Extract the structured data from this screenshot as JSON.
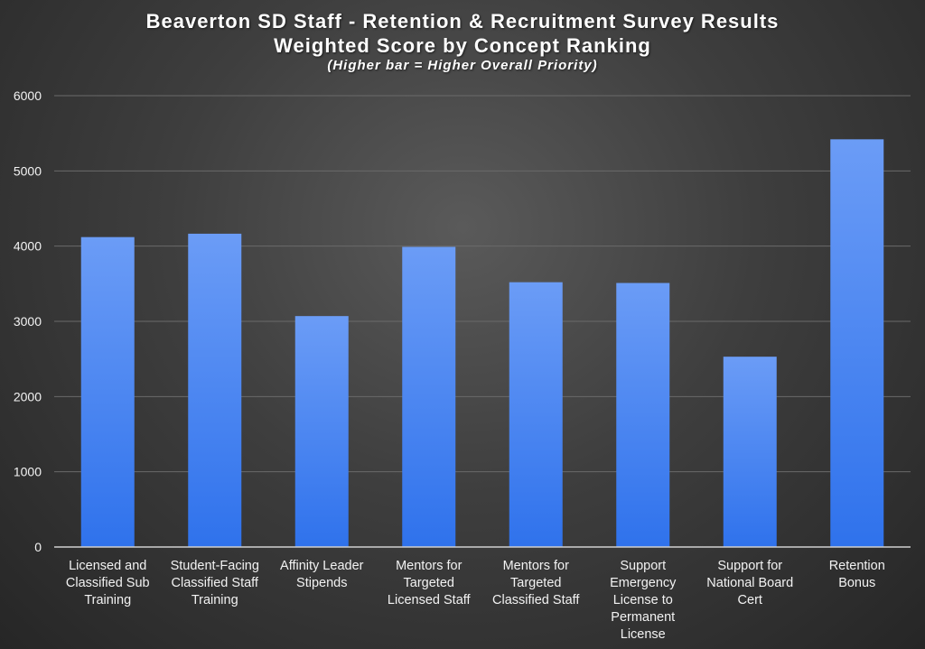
{
  "header": {
    "title_line1": "Beaverton SD Staff - Retention & Recruitment Survey Results",
    "title_line2": "Weighted Score by Concept Ranking",
    "subtitle": "(Higher bar = Higher Overall Priority)"
  },
  "chart_data": {
    "type": "bar",
    "title": "Beaverton SD Staff - Retention & Recruitment Survey Results Weighted Score by Concept Ranking",
    "subtitle": "(Higher bar = Higher Overall Priority)",
    "xlabel": "",
    "ylabel": "",
    "ylim": [
      0,
      6000
    ],
    "yticks": [
      0,
      1000,
      2000,
      3000,
      4000,
      5000,
      6000
    ],
    "grid": true,
    "legend": "none",
    "bar_color": "#3f7ff0",
    "categories": [
      [
        "Licensed and",
        "Classified Sub",
        "Training"
      ],
      [
        "Student-Facing",
        "Classified Staff",
        "Training"
      ],
      [
        "Affinity Leader",
        "Stipends"
      ],
      [
        "Mentors for",
        "Targeted",
        "Licensed Staff"
      ],
      [
        "Mentors for",
        "Targeted",
        "Classified Staff"
      ],
      [
        "Support",
        "Emergency",
        "License to",
        "Permanent",
        "License"
      ],
      [
        "Support for",
        "National Board",
        "Cert"
      ],
      [
        "Retention",
        "Bonus"
      ]
    ],
    "values": [
      4120,
      4165,
      3070,
      3990,
      3520,
      3510,
      2530,
      5420
    ]
  }
}
